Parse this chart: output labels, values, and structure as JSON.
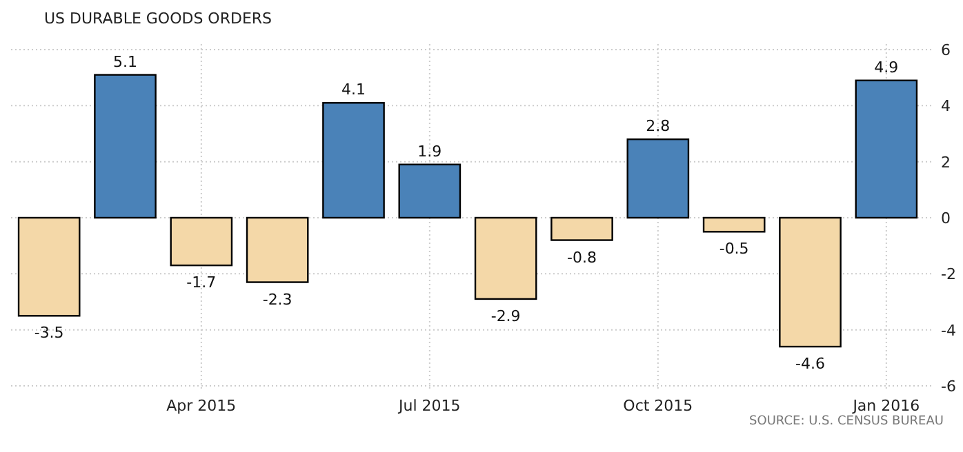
{
  "chart_data": {
    "type": "bar",
    "title": "US DURABLE GOODS ORDERS",
    "categories": [
      null,
      null,
      "Apr 2015",
      null,
      null,
      "Jul 2015",
      null,
      null,
      "Oct 2015",
      null,
      null,
      "Jan 2016"
    ],
    "values": [
      -3.5,
      5.1,
      -1.7,
      -2.3,
      4.1,
      1.9,
      -2.9,
      -0.8,
      2.8,
      -0.5,
      -4.6,
      4.9
    ],
    "colors": [
      "#f4d8a8",
      "#4a82b8",
      "#f4d8a8",
      "#f4d8a8",
      "#4a82b8",
      "#4a82b8",
      "#f4d8a8",
      "#f4d8a8",
      "#4a82b8",
      "#f4d8a8",
      "#f4d8a8",
      "#4a82b8"
    ],
    "ylim": [
      -6,
      6
    ],
    "yticks": [
      -6,
      -4,
      -2,
      0,
      2,
      4,
      6
    ],
    "grid": true,
    "data_labels": true,
    "annotations": [
      "SOURCE: U.S. CENSUS BUREAU"
    ]
  }
}
